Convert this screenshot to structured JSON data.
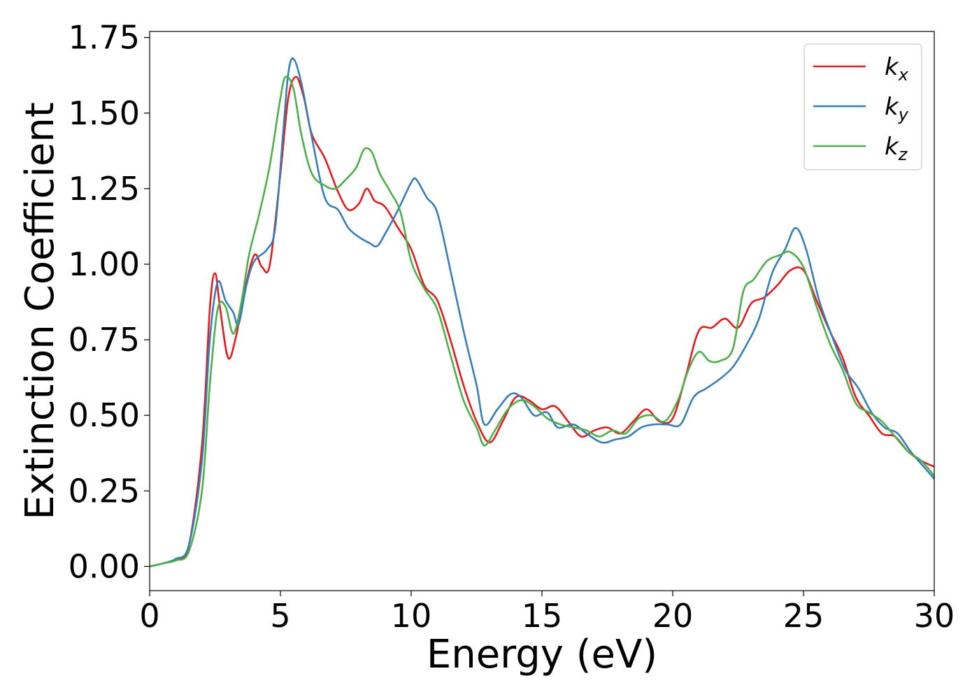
{
  "chart_data": {
    "type": "line",
    "title": "",
    "xlabel": "Energy (eV)",
    "ylabel": "Extinction Coefficient",
    "xlim": [
      0,
      30
    ],
    "ylim": [
      -0.08,
      1.77
    ],
    "xticks": [
      0,
      5,
      10,
      15,
      20,
      25,
      30
    ],
    "xtick_labels": [
      "0",
      "5",
      "10",
      "15",
      "20",
      "25",
      "30"
    ],
    "yticks": [
      0.0,
      0.25,
      0.5,
      0.75,
      1.0,
      1.25,
      1.5,
      1.75
    ],
    "ytick_labels": [
      "0.00",
      "0.25",
      "0.50",
      "0.75",
      "1.00",
      "1.25",
      "1.50",
      "1.75"
    ],
    "grid": false,
    "legend_position": "top-right",
    "series": [
      {
        "name": "k",
        "subscript": "x",
        "color": "#e41a1c",
        "points": [
          [
            0,
            0
          ],
          [
            0.5,
            0.01
          ],
          [
            1.0,
            0.025
          ],
          [
            1.5,
            0.07
          ],
          [
            2.0,
            0.4
          ],
          [
            2.3,
            0.85
          ],
          [
            2.5,
            0.97
          ],
          [
            2.7,
            0.85
          ],
          [
            3.0,
            0.69
          ],
          [
            3.3,
            0.76
          ],
          [
            3.6,
            0.9
          ],
          [
            4.0,
            1.03
          ],
          [
            4.3,
            0.99
          ],
          [
            4.6,
            1.0
          ],
          [
            5.0,
            1.3
          ],
          [
            5.3,
            1.55
          ],
          [
            5.6,
            1.62
          ],
          [
            5.9,
            1.55
          ],
          [
            6.2,
            1.43
          ],
          [
            6.7,
            1.35
          ],
          [
            7.2,
            1.24
          ],
          [
            7.6,
            1.18
          ],
          [
            8.0,
            1.2
          ],
          [
            8.3,
            1.25
          ],
          [
            8.6,
            1.21
          ],
          [
            9.0,
            1.19
          ],
          [
            9.5,
            1.12
          ],
          [
            10.0,
            1.05
          ],
          [
            10.5,
            0.93
          ],
          [
            11.0,
            0.88
          ],
          [
            11.5,
            0.75
          ],
          [
            12.0,
            0.6
          ],
          [
            12.5,
            0.48
          ],
          [
            13.0,
            0.41
          ],
          [
            13.5,
            0.48
          ],
          [
            14.0,
            0.56
          ],
          [
            14.5,
            0.55
          ],
          [
            15.0,
            0.52
          ],
          [
            15.5,
            0.53
          ],
          [
            16.0,
            0.48
          ],
          [
            16.5,
            0.43
          ],
          [
            17.0,
            0.45
          ],
          [
            17.5,
            0.46
          ],
          [
            18.0,
            0.44
          ],
          [
            18.5,
            0.48
          ],
          [
            19.0,
            0.52
          ],
          [
            19.5,
            0.48
          ],
          [
            20.0,
            0.49
          ],
          [
            20.5,
            0.63
          ],
          [
            21.0,
            0.78
          ],
          [
            21.5,
            0.79
          ],
          [
            22.0,
            0.82
          ],
          [
            22.5,
            0.79
          ],
          [
            23.0,
            0.87
          ],
          [
            23.5,
            0.89
          ],
          [
            24.0,
            0.93
          ],
          [
            24.5,
            0.98
          ],
          [
            25.0,
            0.98
          ],
          [
            25.5,
            0.88
          ],
          [
            26.0,
            0.78
          ],
          [
            26.5,
            0.69
          ],
          [
            27.0,
            0.56
          ],
          [
            27.5,
            0.5
          ],
          [
            28.0,
            0.44
          ],
          [
            28.5,
            0.43
          ],
          [
            29.0,
            0.38
          ],
          [
            29.5,
            0.35
          ],
          [
            30.0,
            0.33
          ]
        ]
      },
      {
        "name": "k",
        "subscript": "y",
        "color": "#377eb8",
        "points": [
          [
            0,
            0
          ],
          [
            0.5,
            0.01
          ],
          [
            1.0,
            0.025
          ],
          [
            1.5,
            0.07
          ],
          [
            2.0,
            0.35
          ],
          [
            2.3,
            0.75
          ],
          [
            2.6,
            0.94
          ],
          [
            2.9,
            0.88
          ],
          [
            3.2,
            0.84
          ],
          [
            3.4,
            0.8
          ],
          [
            3.7,
            0.93
          ],
          [
            4.0,
            1.01
          ],
          [
            4.5,
            1.05
          ],
          [
            4.8,
            1.12
          ],
          [
            5.1,
            1.43
          ],
          [
            5.3,
            1.63
          ],
          [
            5.5,
            1.68
          ],
          [
            5.8,
            1.6
          ],
          [
            6.2,
            1.42
          ],
          [
            6.7,
            1.22
          ],
          [
            7.2,
            1.18
          ],
          [
            7.6,
            1.12
          ],
          [
            8.0,
            1.09
          ],
          [
            8.4,
            1.07
          ],
          [
            8.7,
            1.06
          ],
          [
            9.0,
            1.1
          ],
          [
            9.5,
            1.18
          ],
          [
            10.0,
            1.27
          ],
          [
            10.2,
            1.28
          ],
          [
            10.6,
            1.22
          ],
          [
            11.0,
            1.17
          ],
          [
            11.5,
            0.98
          ],
          [
            12.0,
            0.78
          ],
          [
            12.5,
            0.6
          ],
          [
            12.8,
            0.47
          ],
          [
            13.3,
            0.52
          ],
          [
            13.8,
            0.57
          ],
          [
            14.2,
            0.56
          ],
          [
            14.7,
            0.5
          ],
          [
            15.2,
            0.51
          ],
          [
            15.6,
            0.46
          ],
          [
            16.2,
            0.47
          ],
          [
            16.7,
            0.44
          ],
          [
            17.3,
            0.41
          ],
          [
            17.8,
            0.42
          ],
          [
            18.3,
            0.43
          ],
          [
            18.8,
            0.46
          ],
          [
            19.3,
            0.47
          ],
          [
            19.8,
            0.47
          ],
          [
            20.3,
            0.47
          ],
          [
            20.8,
            0.56
          ],
          [
            21.3,
            0.59
          ],
          [
            21.8,
            0.62
          ],
          [
            22.3,
            0.66
          ],
          [
            22.8,
            0.73
          ],
          [
            23.3,
            0.82
          ],
          [
            23.8,
            0.97
          ],
          [
            24.3,
            1.05
          ],
          [
            24.7,
            1.12
          ],
          [
            25.1,
            1.05
          ],
          [
            25.6,
            0.88
          ],
          [
            26.1,
            0.76
          ],
          [
            26.6,
            0.65
          ],
          [
            27.1,
            0.59
          ],
          [
            27.6,
            0.51
          ],
          [
            28.1,
            0.46
          ],
          [
            28.6,
            0.44
          ],
          [
            29.1,
            0.38
          ],
          [
            29.6,
            0.33
          ],
          [
            30.0,
            0.29
          ]
        ]
      },
      {
        "name": "k",
        "subscript": "z",
        "color": "#4daf4a",
        "points": [
          [
            0,
            0
          ],
          [
            0.5,
            0.01
          ],
          [
            1.0,
            0.02
          ],
          [
            1.5,
            0.05
          ],
          [
            2.0,
            0.25
          ],
          [
            2.3,
            0.6
          ],
          [
            2.6,
            0.85
          ],
          [
            2.9,
            0.86
          ],
          [
            3.2,
            0.77
          ],
          [
            3.5,
            0.87
          ],
          [
            3.8,
            1.03
          ],
          [
            4.2,
            1.17
          ],
          [
            4.6,
            1.33
          ],
          [
            5.0,
            1.55
          ],
          [
            5.2,
            1.62
          ],
          [
            5.5,
            1.58
          ],
          [
            5.8,
            1.43
          ],
          [
            6.2,
            1.3
          ],
          [
            6.7,
            1.26
          ],
          [
            7.1,
            1.25
          ],
          [
            7.5,
            1.28
          ],
          [
            7.9,
            1.32
          ],
          [
            8.2,
            1.38
          ],
          [
            8.5,
            1.37
          ],
          [
            8.8,
            1.3
          ],
          [
            9.2,
            1.24
          ],
          [
            9.6,
            1.17
          ],
          [
            10.0,
            1.01
          ],
          [
            10.5,
            0.92
          ],
          [
            11.0,
            0.85
          ],
          [
            11.5,
            0.7
          ],
          [
            12.0,
            0.55
          ],
          [
            12.5,
            0.46
          ],
          [
            12.8,
            0.4
          ],
          [
            13.2,
            0.45
          ],
          [
            13.7,
            0.52
          ],
          [
            14.2,
            0.55
          ],
          [
            14.7,
            0.53
          ],
          [
            15.2,
            0.49
          ],
          [
            15.7,
            0.47
          ],
          [
            16.2,
            0.46
          ],
          [
            16.7,
            0.45
          ],
          [
            17.2,
            0.43
          ],
          [
            17.7,
            0.45
          ],
          [
            18.2,
            0.44
          ],
          [
            18.7,
            0.49
          ],
          [
            19.2,
            0.5
          ],
          [
            19.7,
            0.48
          ],
          [
            20.2,
            0.55
          ],
          [
            20.6,
            0.65
          ],
          [
            21.0,
            0.71
          ],
          [
            21.4,
            0.68
          ],
          [
            21.8,
            0.68
          ],
          [
            22.3,
            0.72
          ],
          [
            22.7,
            0.91
          ],
          [
            23.1,
            0.95
          ],
          [
            23.6,
            1.01
          ],
          [
            24.1,
            1.03
          ],
          [
            24.5,
            1.04
          ],
          [
            25.0,
            0.99
          ],
          [
            25.5,
            0.86
          ],
          [
            26.0,
            0.74
          ],
          [
            26.5,
            0.65
          ],
          [
            27.0,
            0.54
          ],
          [
            27.5,
            0.51
          ],
          [
            28.0,
            0.48
          ],
          [
            28.5,
            0.43
          ],
          [
            29.0,
            0.38
          ],
          [
            29.5,
            0.35
          ],
          [
            30.0,
            0.3
          ]
        ]
      }
    ]
  }
}
